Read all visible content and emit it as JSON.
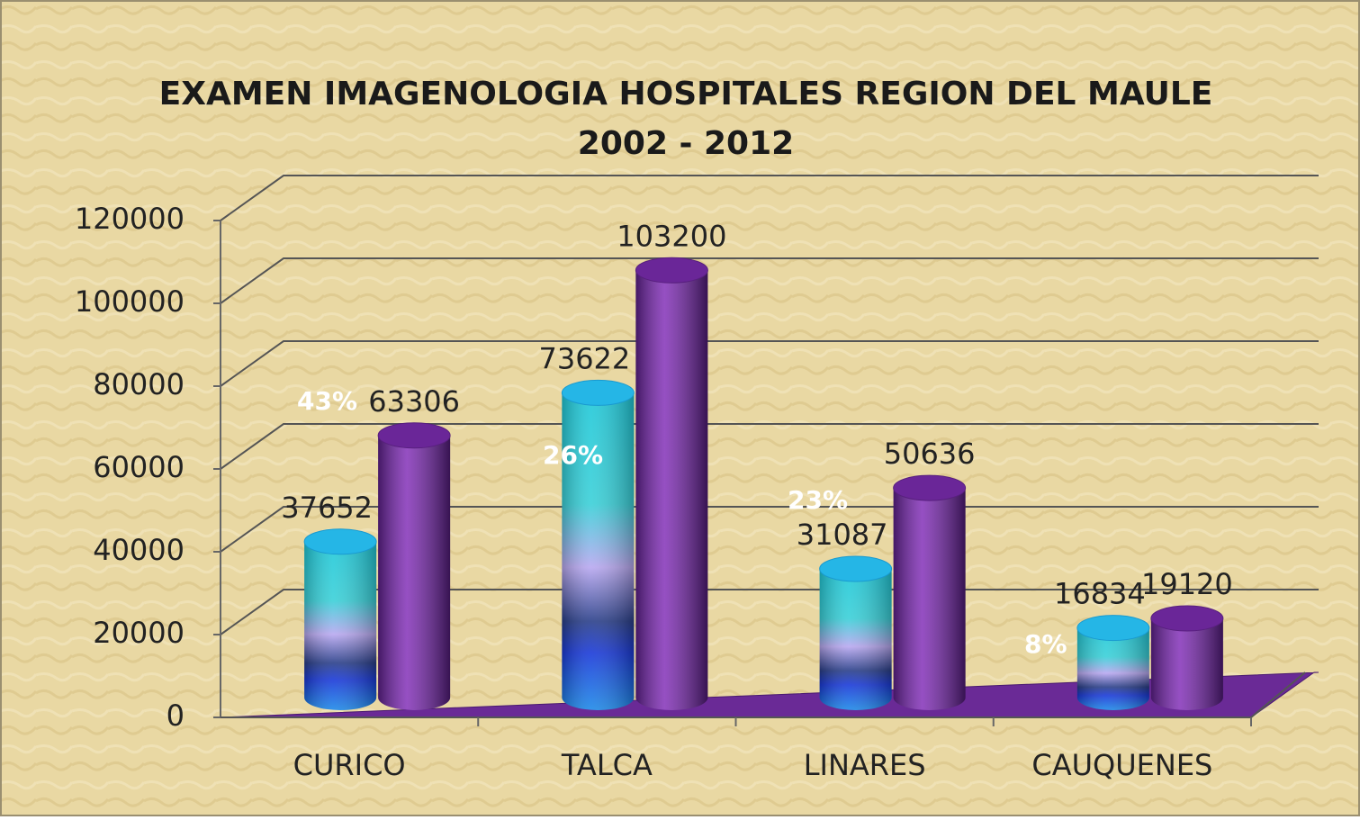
{
  "chart_data": {
    "type": "bar3d",
    "title": "EXAMEN IMAGENOLOGIA HOSPITALES REGION DEL MAULE",
    "subtitle": "2002 - 2012",
    "categories": [
      "CURICO",
      "TALCA",
      "LINARES",
      "CAUQUENES"
    ],
    "series": [
      {
        "color": "#1ec8d8",
        "values": [
          37652,
          73622,
          31087,
          16834
        ]
      },
      {
        "color": "#7b2fa8",
        "values": [
          63306,
          103200,
          50636,
          19120
        ]
      }
    ],
    "annotations": [
      "43%",
      "26%",
      "23%",
      "8%"
    ],
    "ylim": [
      0,
      120000
    ],
    "yticks": [
      0,
      20000,
      40000,
      60000,
      80000,
      100000,
      120000
    ],
    "grid": true
  }
}
